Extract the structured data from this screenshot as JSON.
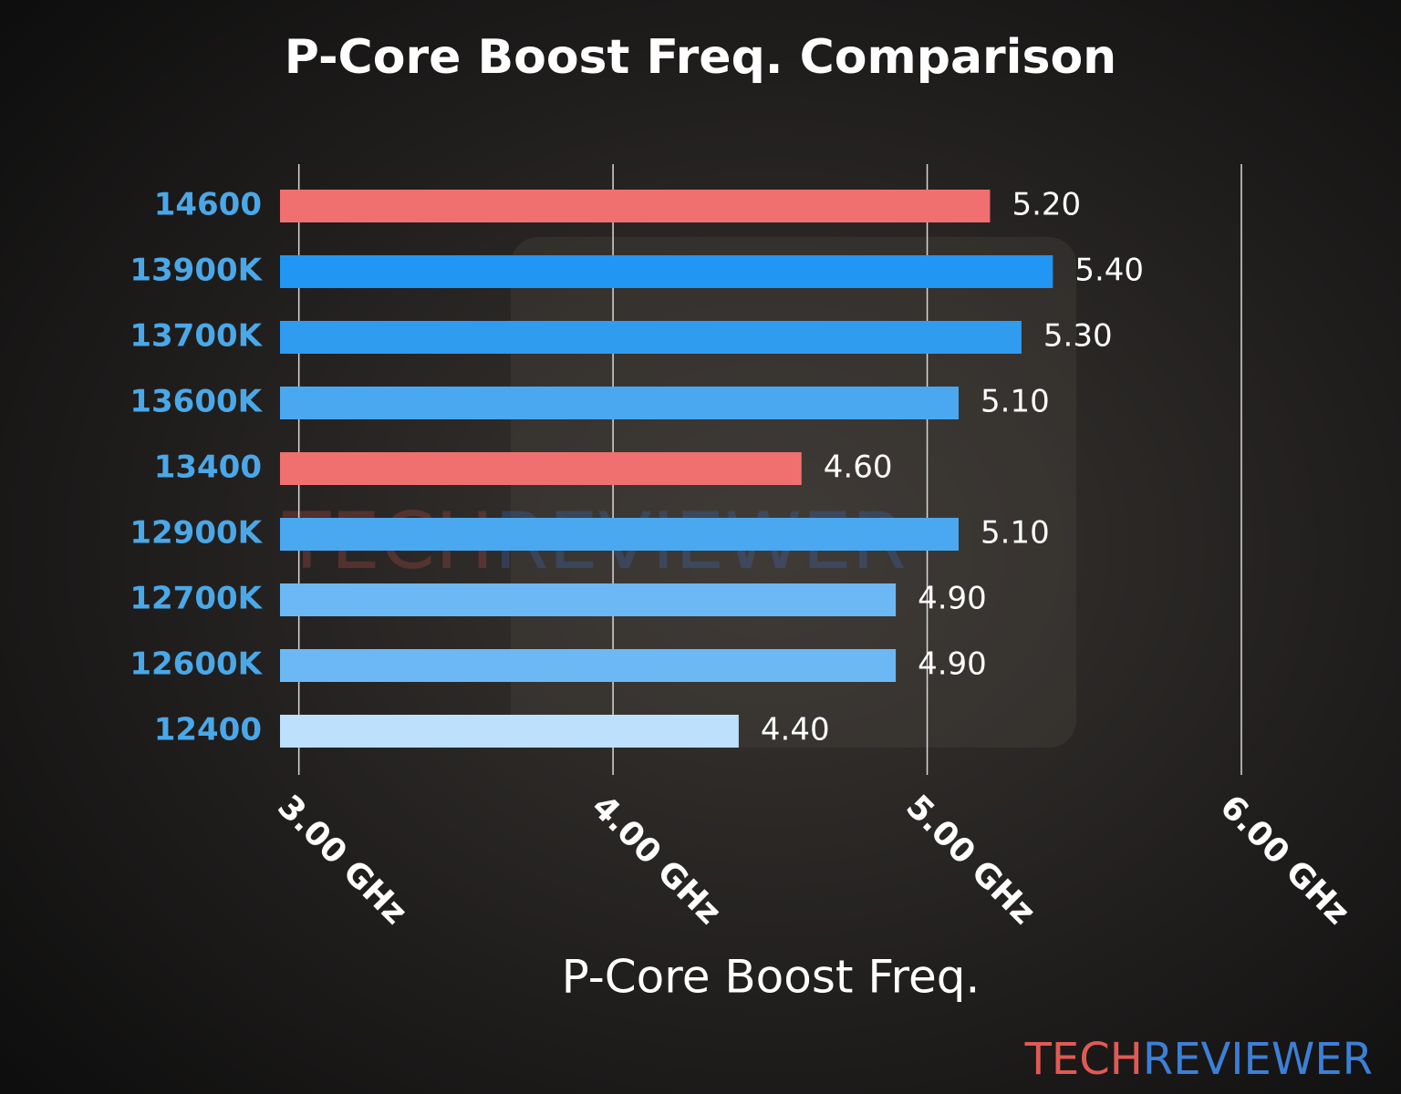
{
  "chart_data": {
    "type": "bar",
    "orientation": "horizontal",
    "title": "P-Core Boost Freq. Comparison",
    "x_label": "P-Core Boost Freq.",
    "categories": [
      "14600",
      "13900K",
      "13700K",
      "13600K",
      "13400",
      "12900K",
      "12700K",
      "12600K",
      "12400"
    ],
    "values": [
      5.2,
      5.4,
      5.3,
      5.1,
      4.6,
      5.1,
      4.9,
      4.9,
      4.4
    ],
    "value_labels": [
      "5.20",
      "5.40",
      "5.30",
      "5.10",
      "4.60",
      "5.10",
      "4.90",
      "4.90",
      "4.40"
    ],
    "colors": [
      "#f07070",
      "#2196f3",
      "#309cf0",
      "#4aa8f0",
      "#f07070",
      "#4aa8f0",
      "#6cb8f4",
      "#6cb8f4",
      "#bde0fc"
    ],
    "xlim": [
      2.94,
      6.0
    ],
    "xticks": [
      {
        "value": 3,
        "label": "3.00 GHz"
      },
      {
        "value": 4,
        "label": "4.00 GHz"
      },
      {
        "value": 5,
        "label": "5.00 GHz"
      },
      {
        "value": 6,
        "label": "6.00 GHz"
      }
    ],
    "grid": true,
    "watermark": {
      "tech": "TECH",
      "reviewer": "REVIEWER"
    }
  }
}
